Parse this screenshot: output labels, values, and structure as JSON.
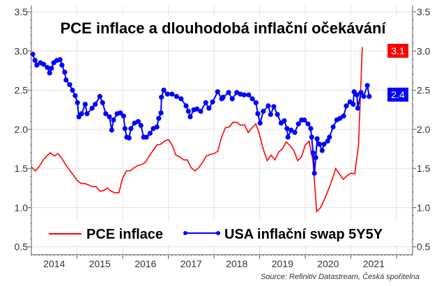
{
  "chart_data": {
    "type": "line",
    "title": "PCE inflace a dlouhodobá inflační očekávání",
    "xlabel": "",
    "ylabel": "",
    "xlim": [
      2014.0,
      2022.35
    ],
    "ylim": [
      0.4,
      3.58
    ],
    "x_ticks": [
      "2014",
      "2015",
      "2016",
      "2017",
      "2018",
      "2019",
      "2020",
      "2021"
    ],
    "y_ticks": [
      "0.5",
      "1.0",
      "1.5",
      "2.0",
      "2.5",
      "3.0",
      "3.5"
    ],
    "grid": true,
    "legend_position": "bottom-inside",
    "source": "Source: Refinitiv Datastream, Česká spořitelna",
    "series": [
      {
        "name": "PCE inflace",
        "color": "#ff0000",
        "markers": false,
        "start_year": 2014.0,
        "step": "monthly",
        "values": [
          1.52,
          1.47,
          1.52,
          1.6,
          1.66,
          1.7,
          1.66,
          1.69,
          1.63,
          1.55,
          1.48,
          1.42,
          1.35,
          1.31,
          1.31,
          1.29,
          1.27,
          1.27,
          1.21,
          1.22,
          1.25,
          1.21,
          1.19,
          1.19,
          1.38,
          1.47,
          1.47,
          1.51,
          1.54,
          1.55,
          1.58,
          1.66,
          1.73,
          1.8,
          1.81,
          1.85,
          1.87,
          1.8,
          1.67,
          1.65,
          1.61,
          1.61,
          1.51,
          1.47,
          1.51,
          1.58,
          1.66,
          1.68,
          1.69,
          1.72,
          1.9,
          2.02,
          2.03,
          2.09,
          2.09,
          2.05,
          2.06,
          1.96,
          2.02,
          2.07,
          1.93,
          1.74,
          1.6,
          1.67,
          1.61,
          1.71,
          1.75,
          1.84,
          1.79,
          1.73,
          1.6,
          1.65,
          1.8,
          1.85,
          1.6,
          0.95,
          1.0,
          1.1,
          1.22,
          1.35,
          1.5,
          1.43,
          1.36,
          1.41,
          1.44,
          1.43,
          1.8,
          3.05
        ],
        "last_label": "3.1"
      },
      {
        "name": "USA inflační swap 5Y5Y",
        "color": "#0000ff",
        "markers": true,
        "x": [
          2014.03,
          2014.08,
          2014.12,
          2014.2,
          2014.27,
          2014.35,
          2014.4,
          2014.44,
          2014.49,
          2014.56,
          2014.63,
          2014.67,
          2014.73,
          2014.76,
          2014.84,
          2014.9,
          2014.96,
          2015.01,
          2015.04,
          2015.1,
          2015.18,
          2015.22,
          2015.33,
          2015.4,
          2015.5,
          2015.56,
          2015.63,
          2015.71,
          2015.76,
          2015.8,
          2015.88,
          2015.95,
          2016.02,
          2016.05,
          2016.09,
          2016.14,
          2016.18,
          2016.26,
          2016.34,
          2016.4,
          2016.46,
          2016.52,
          2016.6,
          2016.67,
          2016.75,
          2016.79,
          2016.84,
          2016.85,
          2016.9,
          2016.98,
          2017.08,
          2017.18,
          2017.28,
          2017.39,
          2017.44,
          2017.48,
          2017.56,
          2017.63,
          2017.71,
          2017.82,
          2017.89,
          2017.97,
          2018.08,
          2018.17,
          2018.2,
          2018.32,
          2018.4,
          2018.5,
          2018.58,
          2018.66,
          2018.76,
          2018.84,
          2018.92,
          2018.96,
          2019.01,
          2019.08,
          2019.19,
          2019.24,
          2019.31,
          2019.39,
          2019.47,
          2019.54,
          2019.6,
          2019.62,
          2019.69,
          2019.77,
          2019.85,
          2019.92,
          2019.98,
          2020.06,
          2020.12,
          2020.14,
          2020.17,
          2020.2,
          2020.23,
          2020.26,
          2020.31,
          2020.37,
          2020.41,
          2020.49,
          2020.53,
          2020.61,
          2020.69,
          2020.76,
          2020.84,
          2020.9,
          2020.98,
          2021.05,
          2021.07,
          2021.13,
          2021.15,
          2021.22,
          2021.28,
          2021.36,
          2021.4
        ],
        "values": [
          2.96,
          2.88,
          2.82,
          2.85,
          2.83,
          2.79,
          2.72,
          2.78,
          2.85,
          2.88,
          2.89,
          2.82,
          2.73,
          2.63,
          2.57,
          2.5,
          2.43,
          2.34,
          2.16,
          2.2,
          2.32,
          2.2,
          2.27,
          2.32,
          2.42,
          2.34,
          2.2,
          2.16,
          1.99,
          2.12,
          2.2,
          2.21,
          2.17,
          2.01,
          1.9,
          1.89,
          2.01,
          2.08,
          2.1,
          2.05,
          1.9,
          1.9,
          1.95,
          2.01,
          2.03,
          2.14,
          2.21,
          2.41,
          2.5,
          2.45,
          2.45,
          2.42,
          2.39,
          2.3,
          2.23,
          2.16,
          2.25,
          2.26,
          2.23,
          2.34,
          2.27,
          2.35,
          2.48,
          2.39,
          2.41,
          2.47,
          2.39,
          2.47,
          2.45,
          2.44,
          2.44,
          2.39,
          2.34,
          2.2,
          2.08,
          2.23,
          2.3,
          2.19,
          2.29,
          2.19,
          2.08,
          2.11,
          2.01,
          1.9,
          1.99,
          1.96,
          2.07,
          2.12,
          2.12,
          2.07,
          2.01,
          1.9,
          1.7,
          1.44,
          1.64,
          1.88,
          1.81,
          1.73,
          1.81,
          1.85,
          1.9,
          2.03,
          2.12,
          2.14,
          2.17,
          2.3,
          2.35,
          2.32,
          2.48,
          2.44,
          2.27,
          2.47,
          2.42,
          2.56,
          2.42
        ],
        "last_label": "2.4"
      }
    ]
  }
}
